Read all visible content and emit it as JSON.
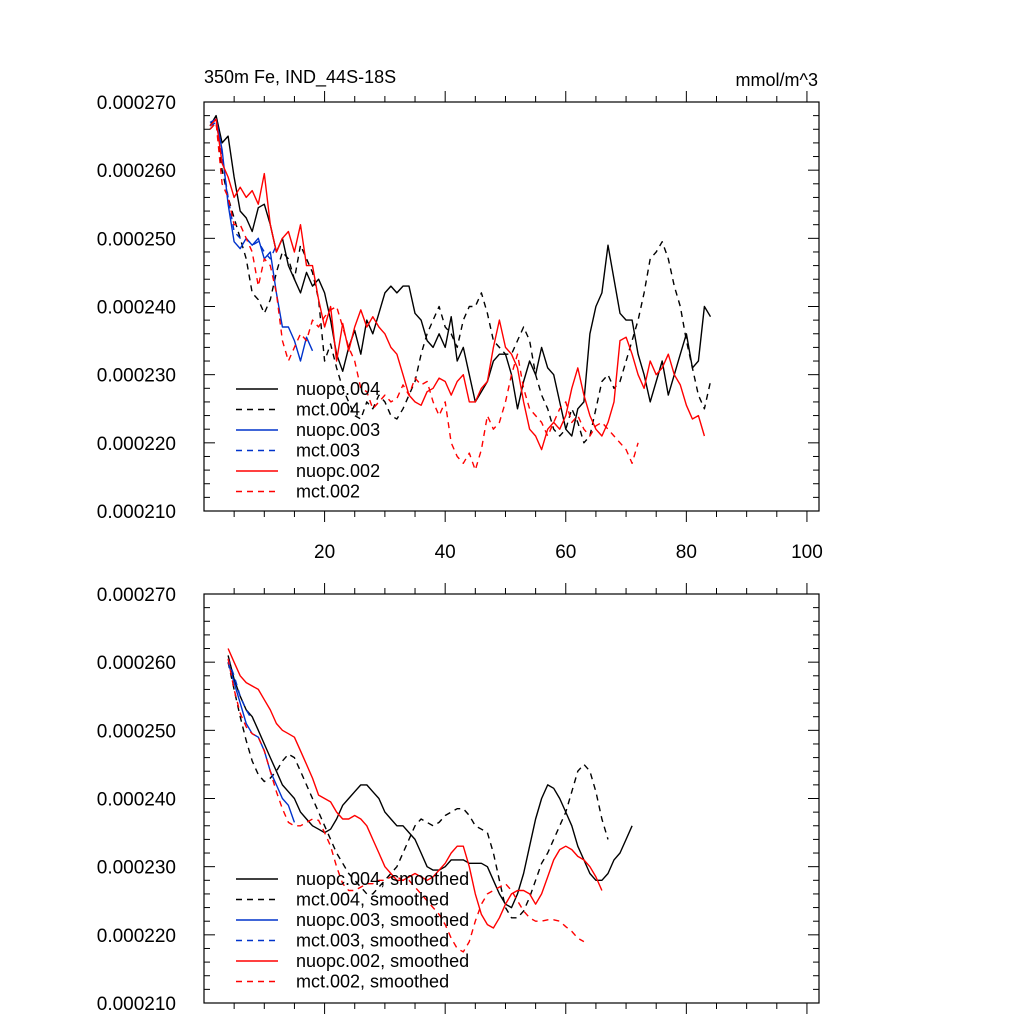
{
  "chart_data": [
    {
      "type": "line",
      "title": "350m Fe, IND_44S-18S",
      "units": "mmol/m^3",
      "xlim": [
        0,
        102
      ],
      "ylim": [
        0.00021,
        0.00027
      ],
      "xticks": [
        20,
        40,
        60,
        80,
        100
      ],
      "xtick_labels": [
        "20",
        "40",
        "60",
        "80",
        "100"
      ],
      "yticks": [
        0.00021,
        0.00022,
        0.00023,
        0.00024,
        0.00025,
        0.00026,
        0.00027
      ],
      "ytick_labels": [
        "0.000210",
        "0.000220",
        "0.000230",
        "0.000240",
        "0.000250",
        "0.000260",
        "0.000270"
      ],
      "legend_position": "bottom-left",
      "series": [
        {
          "name": "nuopc.004",
          "color": "#000000",
          "dash": "solid",
          "x_start": 1,
          "values": [
            0.0002665,
            0.000268,
            0.000264,
            0.000265,
            0.000259,
            0.000254,
            0.000253,
            0.000251,
            0.0002545,
            0.000255,
            0.000252,
            0.000248,
            0.00025,
            0.000246,
            0.000244,
            0.000242,
            0.000245,
            0.000243,
            0.000244,
            0.000242,
            0.000238,
            0.000233,
            0.0002305,
            0.000234,
            0.0002365,
            0.000233,
            0.000238,
            0.000236,
            0.000239,
            0.000242,
            0.000243,
            0.000242,
            0.000243,
            0.000243,
            0.000239,
            0.000238,
            0.000235,
            0.000234,
            0.000236,
            0.000234,
            0.0002385,
            0.000232,
            0.000234,
            0.00023,
            0.000226,
            0.0002275,
            0.000229,
            0.000232,
            0.000233,
            0.000233,
            0.00023,
            0.000225,
            0.000229,
            0.000232,
            0.00023,
            0.000234,
            0.000231,
            0.00023,
            0.000226,
            0.000222,
            0.000221,
            0.000225,
            0.000226,
            0.000236,
            0.00024,
            0.000242,
            0.000249,
            0.000244,
            0.000239,
            0.000238,
            0.000238,
            0.000233,
            0.00023,
            0.000226,
            0.000229,
            0.000232,
            0.000227,
            0.00023,
            0.000233,
            0.000236,
            0.000231,
            0.000232,
            0.00024,
            0.0002385
          ]
        },
        {
          "name": "mct.004",
          "color": "#000000",
          "dash": "dashed",
          "x_start": 1,
          "values": [
            0.000266,
            0.000267,
            0.00026,
            0.000256,
            0.000253,
            0.00025,
            0.000247,
            0.000242,
            0.000241,
            0.000239,
            0.000241,
            0.000245,
            0.000248,
            0.000247,
            0.000244,
            0.000249,
            0.000247,
            0.000245,
            0.000241,
            0.000232,
            0.0002345,
            0.000231,
            0.000228,
            0.000226,
            0.000224,
            0.0002235,
            0.000226,
            0.000225,
            0.000227,
            0.000226,
            0.000224,
            0.0002235,
            0.000225,
            0.000227,
            0.000229,
            0.000233,
            0.000236,
            0.000238,
            0.00024,
            0.000237,
            0.000236,
            0.000234,
            0.000238,
            0.00024,
            0.00024,
            0.000242,
            0.000239,
            0.000235,
            0.000234,
            0.000233,
            0.000233,
            0.000235,
            0.000237,
            0.000235,
            0.00023,
            0.000227,
            0.000225,
            0.000222,
            0.000221,
            0.000222,
            0.000225,
            0.000223,
            0.00022,
            0.000221,
            0.000225,
            0.000229,
            0.00023,
            0.000228,
            0.000229,
            0.000232,
            0.000235,
            0.000238,
            0.000242,
            0.000247,
            0.000248,
            0.0002495,
            0.000247,
            0.000243,
            0.00024,
            0.000235,
            0.000231,
            0.000227,
            0.000225,
            0.000229
          ]
        },
        {
          "name": "nuopc.003",
          "color": "#0033cc",
          "dash": "solid",
          "x_start": 1,
          "values": [
            0.000267,
            0.0002675,
            0.000263,
            0.000255,
            0.0002495,
            0.0002485,
            0.00025,
            0.000249,
            0.00025,
            0.000247,
            0.000248,
            0.000242,
            0.000237,
            0.000237,
            0.000235,
            0.000232,
            0.0002355,
            0.0002335
          ]
        },
        {
          "name": "mct.003",
          "color": "#0033cc",
          "dash": "dashed",
          "x_start": 1,
          "values": [
            0.0002665,
            0.000267,
            0.000262,
            0.000256,
            0.000251,
            0.00025,
            0.00025,
            0.000249,
            0.0002495,
            0.000248,
            0.000247,
            0.000249
          ]
        },
        {
          "name": "nuopc.002",
          "color": "#ff0000",
          "dash": "solid",
          "x_start": 1,
          "values": [
            0.0002665,
            0.0002675,
            0.000261,
            0.000259,
            0.000256,
            0.0002575,
            0.000256,
            0.000257,
            0.000255,
            0.0002595,
            0.000252,
            0.000248,
            0.00025,
            0.000251,
            0.000248,
            0.000252,
            0.000246,
            0.000246,
            0.000241,
            0.000237,
            0.00024,
            0.000232,
            0.0002375,
            0.0002335,
            0.000237,
            0.0002395,
            0.000237,
            0.0002385,
            0.000237,
            0.000236,
            0.000234,
            0.000233,
            0.00023,
            0.000227,
            0.000226,
            0.0002255,
            0.0002275,
            0.000228,
            0.0002295,
            0.000229,
            0.000227,
            0.000229,
            0.00023,
            0.000226,
            0.000226,
            0.000228,
            0.000229,
            0.000234,
            0.000238,
            0.000234,
            0.000233,
            0.000231,
            0.000226,
            0.000222,
            0.000221,
            0.000219,
            0.000222,
            0.000223,
            0.000222,
            0.000224,
            0.000228,
            0.000231,
            0.000227,
            0.000224,
            0.000222,
            0.000221,
            0.000223,
            0.000226,
            0.000235,
            0.0002355,
            0.000233,
            0.00023,
            0.000228,
            0.000232,
            0.00023,
            0.000231,
            0.000233,
            0.00023,
            0.0002285,
            0.0002255,
            0.0002235,
            0.000224,
            0.000221
          ]
        },
        {
          "name": "mct.002",
          "color": "#ff0000",
          "dash": "dashed",
          "x_start": 1,
          "values": [
            0.000266,
            0.000267,
            0.000258,
            0.000256,
            0.000252,
            0.000252,
            0.00025,
            0.000248,
            0.000243,
            0.000247,
            0.000246,
            0.000242,
            0.000235,
            0.000232,
            0.000234,
            0.000236,
            0.000235,
            0.000238,
            0.000237,
            0.0002385,
            0.0002395,
            0.00024,
            0.000237,
            0.000234,
            0.000232,
            0.000228,
            0.0002275,
            0.000225,
            0.000226,
            0.000227,
            0.000226,
            0.0002265,
            0.0002285,
            0.000227,
            0.0002295,
            0.0002285,
            0.000229,
            0.000226,
            0.000224,
            0.000226,
            0.00022,
            0.000218,
            0.000217,
            0.0002185,
            0.000216,
            0.000219,
            0.000224,
            0.000222,
            0.000223,
            0.000226,
            0.00023,
            0.000233,
            0.000228,
            0.000225,
            0.000224,
            0.000223,
            0.000221,
            0.000223,
            0.000225,
            0.000226,
            0.000223,
            0.000224,
            0.000222,
            0.000221,
            0.0002225,
            0.000223,
            0.000222,
            0.000221,
            0.00022,
            0.000219,
            0.000217,
            0.00022
          ]
        }
      ]
    },
    {
      "type": "line",
      "title": "",
      "xlim": [
        0,
        102
      ],
      "ylim": [
        0.00021,
        0.00027
      ],
      "xticks": [
        20,
        40,
        60,
        80,
        100
      ],
      "yticks": [
        0.00021,
        0.00022,
        0.00023,
        0.00024,
        0.00025,
        0.00026,
        0.00027
      ],
      "ytick_labels": [
        "0.000210",
        "0.000220",
        "0.000230",
        "0.000240",
        "0.000250",
        "0.000260",
        "0.000270"
      ],
      "legend_position": "bottom-left",
      "series": [
        {
          "name": "nuopc.004, smoothed",
          "color": "#000000",
          "dash": "solid",
          "x_start": 4,
          "values": [
            0.000261,
            0.0002575,
            0.000255,
            0.000253,
            0.000252,
            0.00025,
            0.000248,
            0.000246,
            0.000244,
            0.000242,
            0.000241,
            0.00024,
            0.000238,
            0.000237,
            0.000236,
            0.0002355,
            0.000235,
            0.0002355,
            0.000237,
            0.000239,
            0.00024,
            0.000241,
            0.000242,
            0.000242,
            0.000241,
            0.00024,
            0.000238,
            0.000237,
            0.000236,
            0.000236,
            0.000235,
            0.000234,
            0.000232,
            0.00023,
            0.0002295,
            0.0002295,
            0.00023,
            0.000231,
            0.000231,
            0.000231,
            0.0002305,
            0.0002305,
            0.0002305,
            0.00023,
            0.000228,
            0.000226,
            0.0002245,
            0.000224,
            0.000226,
            0.000229,
            0.000233,
            0.000237,
            0.00024,
            0.000242,
            0.0002415,
            0.00024,
            0.000238,
            0.000236,
            0.000233,
            0.000231,
            0.000229,
            0.000228,
            0.000228,
            0.000229,
            0.000231,
            0.000232,
            0.000234,
            0.000236
          ]
        },
        {
          "name": "mct.004, smoothed",
          "color": "#000000",
          "dash": "dashed",
          "x_start": 4,
          "values": [
            0.00026,
            0.000256,
            0.000252,
            0.0002485,
            0.0002455,
            0.0002435,
            0.0002425,
            0.000243,
            0.000244,
            0.0002455,
            0.0002465,
            0.000246,
            0.000244,
            0.000242,
            0.00024,
            0.000238,
            0.000236,
            0.000234,
            0.000232,
            0.0002305,
            0.000229,
            0.000228,
            0.000227,
            0.000226,
            0.000226,
            0.000227,
            0.000228,
            0.000229,
            0.00023,
            0.000232,
            0.000234,
            0.000236,
            0.000237,
            0.0002365,
            0.000236,
            0.0002365,
            0.0002375,
            0.000238,
            0.0002385,
            0.0002385,
            0.0002375,
            0.000236,
            0.0002355,
            0.000235,
            0.000232,
            0.000228,
            0.000224,
            0.0002225,
            0.0002225,
            0.0002235,
            0.0002255,
            0.000228,
            0.0002305,
            0.000232,
            0.000234,
            0.000236,
            0.000238,
            0.000241,
            0.000244,
            0.000245,
            0.000244,
            0.000241,
            0.000237,
            0.000234
          ]
        },
        {
          "name": "nuopc.003, smoothed",
          "color": "#0033cc",
          "dash": "solid",
          "x_start": 4,
          "values": [
            0.00026,
            0.000257,
            0.000254,
            0.000251,
            0.0002495,
            0.000249,
            0.000247,
            0.000244,
            0.000242,
            0.00024,
            0.000239,
            0.0002365
          ]
        },
        {
          "name": "mct.003, smoothed",
          "color": "#0033cc",
          "dash": "dashed",
          "x_start": 4,
          "values": [
            0.0002605,
            0.000258,
            0.000255,
            0.000253,
            0.0002515
          ]
        },
        {
          "name": "nuopc.002, smoothed",
          "color": "#ff0000",
          "dash": "solid",
          "x_start": 4,
          "values": [
            0.000262,
            0.00026,
            0.000258,
            0.000257,
            0.0002565,
            0.000256,
            0.0002545,
            0.000253,
            0.000251,
            0.00025,
            0.0002495,
            0.000249,
            0.000247,
            0.000245,
            0.000243,
            0.0002405,
            0.00024,
            0.0002395,
            0.000238,
            0.000237,
            0.000237,
            0.0002375,
            0.000237,
            0.000236,
            0.000234,
            0.000232,
            0.00023,
            0.000229,
            0.000228,
            0.000228,
            0.0002285,
            0.000229,
            0.0002285,
            0.000228,
            0.0002285,
            0.0002295,
            0.0002305,
            0.000232,
            0.000233,
            0.000233,
            0.00023,
            0.000226,
            0.000223,
            0.0002215,
            0.000221,
            0.0002225,
            0.0002245,
            0.000226,
            0.0002265,
            0.0002265,
            0.000226,
            0.0002245,
            0.000226,
            0.0002285,
            0.000231,
            0.0002325,
            0.000233,
            0.0002325,
            0.0002315,
            0.000231,
            0.00023,
            0.0002285,
            0.0002265
          ]
        },
        {
          "name": "mct.002, smoothed",
          "color": "#ff0000",
          "dash": "dashed",
          "x_start": 4,
          "values": [
            0.0002605,
            0.000256,
            0.0002525,
            0.0002505,
            0.0002495,
            0.000249,
            0.000247,
            0.000244,
            0.000241,
            0.0002385,
            0.0002365,
            0.000236,
            0.000236,
            0.0002365,
            0.000237,
            0.0002368,
            0.000235,
            0.000233,
            0.00023,
            0.0002275,
            0.0002265,
            0.0002265,
            0.000227,
            0.0002275,
            0.0002275,
            0.000228,
            0.000228,
            0.0002285,
            0.0002285,
            0.000228,
            0.000228,
            0.000227,
            0.000226,
            0.000225,
            0.000224,
            0.000223,
            0.0002215,
            0.0002195,
            0.000218,
            0.0002175,
            0.000219,
            0.000222,
            0.0002245,
            0.000226,
            0.0002265,
            0.000227,
            0.0002275,
            0.0002265,
            0.000225,
            0.0002235,
            0.0002225,
            0.000222,
            0.000222,
            0.0002222,
            0.0002222,
            0.000222,
            0.0002212,
            0.0002205,
            0.0002195,
            0.000219
          ]
        }
      ]
    }
  ]
}
